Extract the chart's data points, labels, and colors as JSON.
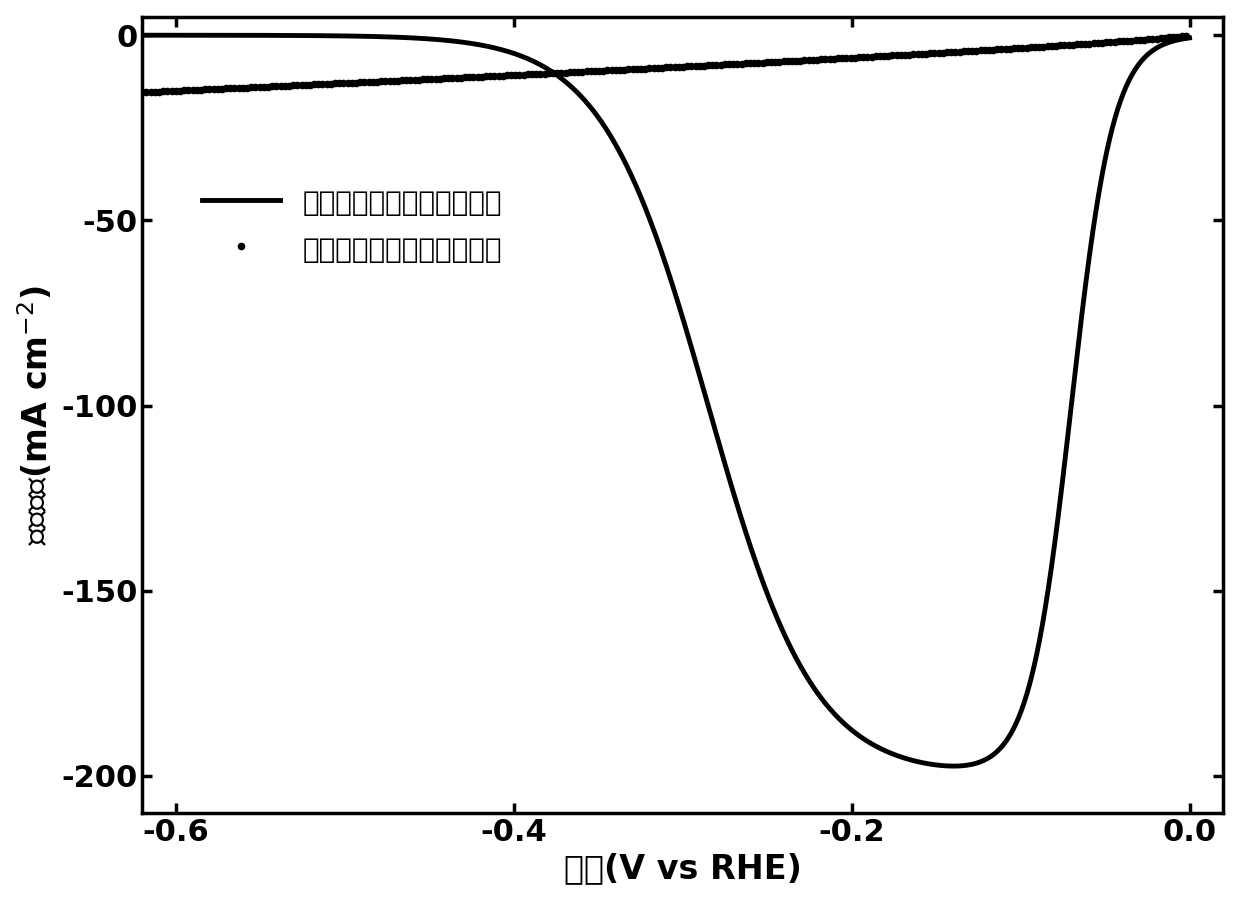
{
  "xlabel": "电势(V vs RHE)",
  "ylabel": "电流密度(mA cm$^{-2}$)",
  "xlim": [
    -0.62,
    0.02
  ],
  "ylim": [
    -210,
    5
  ],
  "xticks": [
    -0.6,
    -0.4,
    -0.2,
    0.0
  ],
  "yticks": [
    0,
    -50,
    -100,
    -150,
    -200
  ],
  "legend_solid": "小分子调控制备的复合材料",
  "legend_dotted": "碳纳米管与小分子的混合物",
  "background_color": "#ffffff",
  "line_color": "#000000",
  "linewidth": 3.0,
  "label_fontsize": 24,
  "tick_fontsize": 22,
  "legend_fontsize": 20
}
